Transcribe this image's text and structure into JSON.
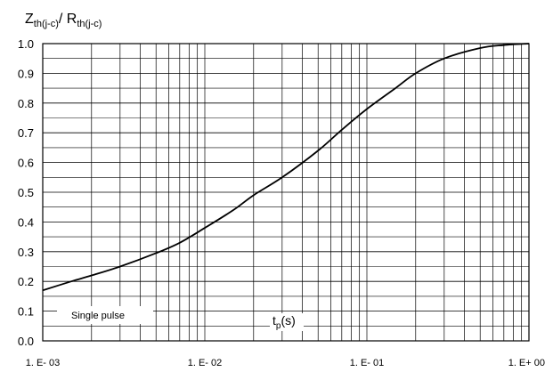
{
  "chart_data": {
    "type": "line",
    "title": "",
    "ylabel": {
      "main": "Z",
      "sub": "th(j-c)",
      "sep": "/ R",
      "sub2": "th(j-c)"
    },
    "xlabel": {
      "main": "t",
      "sub": "p",
      "tail": "(s)"
    },
    "x_scale": "log",
    "xlim": [
      0.001,
      1
    ],
    "ylim": [
      0,
      1
    ],
    "grid": true,
    "x_ticks": [
      {
        "value": 0.001,
        "label": "1. E- 03"
      },
      {
        "value": 0.01,
        "label": "1. E- 02"
      },
      {
        "value": 0.1,
        "label": "1. E- 01"
      },
      {
        "value": 1,
        "label": "1. E+ 00"
      }
    ],
    "y_ticks": [
      {
        "value": 0.0,
        "label": "0.0"
      },
      {
        "value": 0.1,
        "label": "0.1"
      },
      {
        "value": 0.2,
        "label": "0.2"
      },
      {
        "value": 0.3,
        "label": "0.3"
      },
      {
        "value": 0.4,
        "label": "0.4"
      },
      {
        "value": 0.5,
        "label": "0.5"
      },
      {
        "value": 0.6,
        "label": "0.6"
      },
      {
        "value": 0.7,
        "label": "0.7"
      },
      {
        "value": 0.8,
        "label": "0.8"
      },
      {
        "value": 0.9,
        "label": "0.9"
      },
      {
        "value": 1.0,
        "label": "1.0"
      }
    ],
    "annotation": "Single pulse",
    "series": [
      {
        "x": [
          0.001,
          0.0015,
          0.002,
          0.003,
          0.005,
          0.007,
          0.01,
          0.015,
          0.02,
          0.03,
          0.05,
          0.07,
          0.1,
          0.15,
          0.2,
          0.3,
          0.5,
          0.7,
          1.0
        ],
        "y": [
          0.17,
          0.2,
          0.22,
          0.25,
          0.295,
          0.33,
          0.38,
          0.44,
          0.49,
          0.55,
          0.64,
          0.71,
          0.78,
          0.85,
          0.9,
          0.95,
          0.985,
          0.995,
          1.0
        ],
        "color": "#000000"
      }
    ]
  }
}
